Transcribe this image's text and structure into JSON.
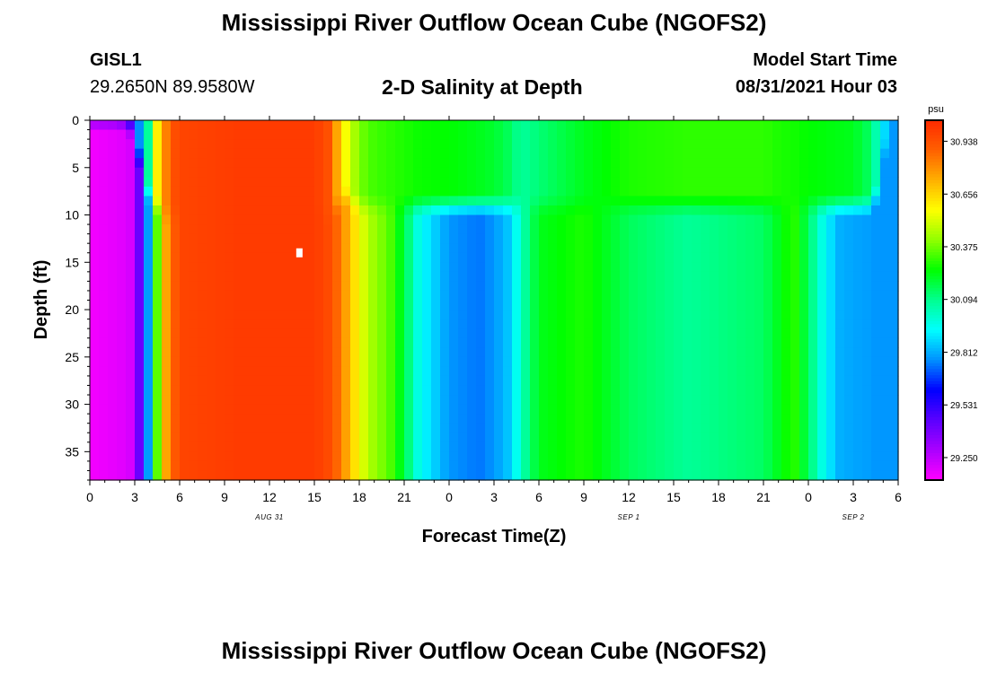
{
  "header": {
    "title": "Mississippi River Outflow Ocean Cube (NGOFS2)",
    "station": "GISL1",
    "coords": "29.2650N  89.9580W",
    "subtitle": "2-D Salinity at Depth",
    "model_label": "Model Start Time",
    "model_time": "08/31/2021 Hour 03"
  },
  "footer": {
    "title": "Mississippi River Outflow Ocean Cube (NGOFS2)"
  },
  "colors": {
    "scale": [
      "#ff00ff",
      "#aa00ff",
      "#5a00ff",
      "#0000ff",
      "#0090ff",
      "#00ffff",
      "#00ff90",
      "#00ff00",
      "#90ff00",
      "#ffff00",
      "#ffb000",
      "#ff6000",
      "#ff2a00"
    ]
  },
  "chart_data": {
    "type": "heatmap",
    "xlabel": "Forecast Time(Z)",
    "ylabel": "Depth (ft)",
    "colorbar_unit": "psu",
    "colorbar_ticks": [
      "30.938",
      "30.656",
      "30.375",
      "30.094",
      "29.812",
      "29.531",
      "29.250"
    ],
    "colorbar_range": [
      29.13,
      31.05
    ],
    "x_tick_labels": [
      "0",
      "3",
      "6",
      "9",
      "12",
      "15",
      "18",
      "21",
      "0",
      "3",
      "6",
      "9",
      "12",
      "15",
      "18",
      "21",
      "0",
      "3",
      "6"
    ],
    "x_range_hours": [
      0,
      54
    ],
    "date_labels": [
      {
        "text": "AUG 31",
        "hour": 12
      },
      {
        "text": "SEP 1",
        "hour": 36
      },
      {
        "text": "SEP 2",
        "hour": 51
      }
    ],
    "y_tick_labels": [
      "0",
      "5",
      "10",
      "15",
      "20",
      "25",
      "30",
      "35"
    ],
    "y_range": [
      0,
      38
    ],
    "profiles": {
      "hours": [
        0,
        2,
        3,
        3.5,
        4,
        4.5,
        5,
        5.5,
        6,
        10,
        15,
        16,
        16.5,
        17,
        17.5,
        18,
        19,
        20,
        21,
        22,
        24,
        26,
        27,
        28,
        28.5,
        29,
        30,
        33,
        36,
        40,
        45,
        46,
        47,
        48,
        49,
        50,
        51,
        52,
        52.5,
        53,
        53.5,
        54
      ],
      "top": [
        29.56,
        29.6,
        29.65,
        29.85,
        30.13,
        30.6,
        30.8,
        30.93,
        30.97,
        31.0,
        31.0,
        30.93,
        30.75,
        30.58,
        30.48,
        30.38,
        30.32,
        30.3,
        30.28,
        30.26,
        30.25,
        30.22,
        30.2,
        30.15,
        30.1,
        30.08,
        30.12,
        30.22,
        30.28,
        30.3,
        30.3,
        30.28,
        30.27,
        30.25,
        30.24,
        30.23,
        30.22,
        30.15,
        30.05,
        29.9,
        29.8,
        29.78
      ],
      "bottom": [
        29.15,
        29.18,
        29.22,
        29.55,
        29.85,
        30.35,
        30.72,
        30.88,
        30.97,
        31.0,
        31.0,
        30.95,
        30.88,
        30.78,
        30.68,
        30.55,
        30.42,
        30.35,
        30.18,
        29.95,
        29.78,
        29.74,
        29.78,
        29.85,
        29.95,
        30.06,
        30.22,
        30.28,
        30.15,
        30.08,
        30.14,
        30.22,
        30.3,
        30.15,
        29.95,
        29.82,
        29.8,
        29.79,
        29.78,
        29.78,
        29.78,
        29.78
      ],
      "transition_depth": [
        0,
        0,
        1,
        6,
        8,
        9,
        10,
        10,
        10,
        10,
        10,
        10,
        9,
        8,
        8.5,
        9,
        9,
        9,
        9,
        9,
        9,
        9,
        9,
        9,
        9,
        9,
        9,
        9,
        9,
        9,
        9,
        9,
        9,
        9,
        9,
        9,
        9,
        9,
        8,
        4,
        0,
        0
      ]
    },
    "marker": {
      "hour": 14,
      "depth": 14
    }
  }
}
